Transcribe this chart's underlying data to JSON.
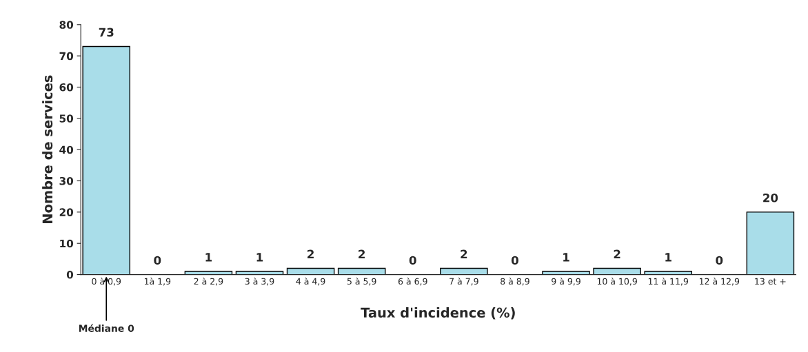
{
  "chart_data": {
    "type": "bar",
    "xlabel": "Taux d'incidence (%)",
    "ylabel": "Nombre de services",
    "categories": [
      "0 à 0,9",
      "1à 1,9",
      "2 à 2,9",
      "3 à 3,9",
      "4 à 4,9",
      "5 à 5,9",
      "6 à 6,9",
      "7 à 7,9",
      "8 à 8,9",
      "9 à 9,9",
      "10 à 10,9",
      "11 à 11,9",
      "12 à 12,9",
      "13 et +"
    ],
    "values": [
      73,
      0,
      1,
      1,
      2,
      2,
      0,
      2,
      0,
      1,
      2,
      1,
      0,
      20
    ],
    "color": "#a9dde9",
    "ylim": [
      0,
      80
    ],
    "yticks": [
      0,
      10,
      20,
      30,
      40,
      50,
      60,
      70,
      80
    ],
    "data_labels": true,
    "grid": false,
    "legend": false,
    "annotations": [
      {
        "text": "Médiane 0",
        "x": "0 à 0,9",
        "y": 0
      }
    ]
  }
}
